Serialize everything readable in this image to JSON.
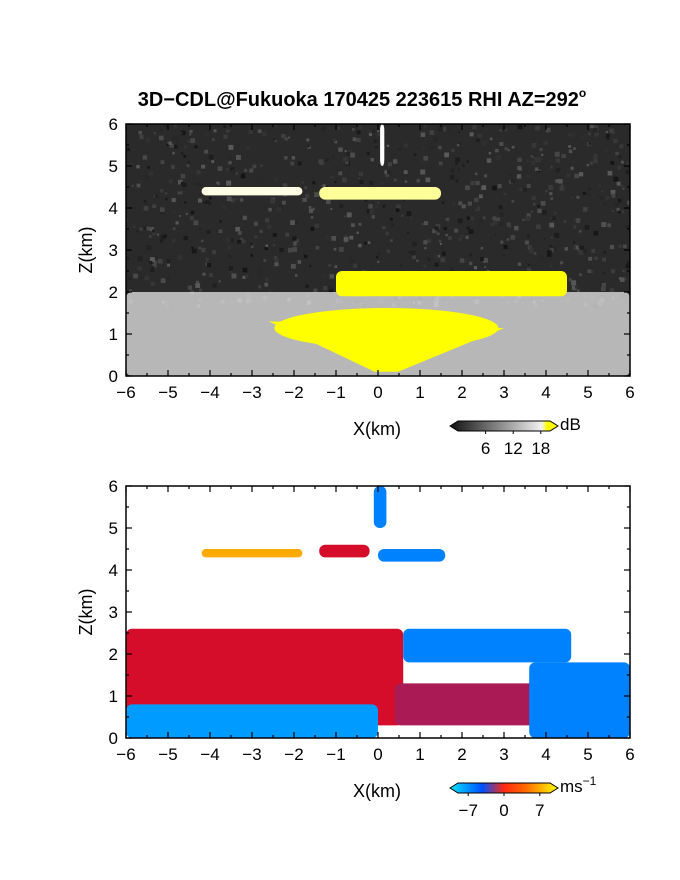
{
  "figure": {
    "title": "3D−CDL@Fukuoka 170425 223615 RHI AZ=292",
    "title_sup": "o"
  },
  "chart_data": [
    {
      "type": "heatmap",
      "panel": "top",
      "field": "SNR",
      "xlabel": "X(km)",
      "ylabel": "Z(km)",
      "xlim": [
        -6,
        6
      ],
      "ylim": [
        0,
        6
      ],
      "xticks": [
        -6,
        -5,
        -4,
        -3,
        -2,
        -1,
        0,
        1,
        2,
        3,
        4,
        5,
        6
      ],
      "yticks": [
        0,
        1,
        2,
        3,
        4,
        5,
        6
      ],
      "xtick_labels": [
        "−6",
        "−5",
        "−4",
        "−3",
        "−2",
        "−1",
        "0",
        "1",
        "2",
        "3",
        "4",
        "5",
        "6"
      ],
      "ytick_labels": [
        "0",
        "1",
        "2",
        "3",
        "4",
        "5",
        "6"
      ],
      "colormap": "grayscale-to-yellow",
      "colorbar": {
        "unit": "dB",
        "range": [
          0,
          20
        ],
        "tick_values": [
          6,
          12,
          18
        ],
        "tick_labels": [
          "6",
          "12",
          "18"
        ],
        "colors": [
          "#101010",
          "#ffffff",
          "#ffff00"
        ]
      },
      "regions": [
        {
          "desc": "upper cloud layer left",
          "x": [
            -4.2,
            -1.8
          ],
          "z": [
            4.3,
            4.5
          ],
          "value_db": 11
        },
        {
          "desc": "upper cloud layer right",
          "x": [
            -1.4,
            1.5
          ],
          "z": [
            4.2,
            4.5
          ],
          "value_db": 14
        },
        {
          "desc": "vertical streak",
          "x": [
            0.05,
            0.15
          ],
          "z": [
            5.0,
            6.0
          ],
          "value_db": 10
        },
        {
          "desc": "saturated band 2 km",
          "x": [
            -1.0,
            4.5
          ],
          "z": [
            1.9,
            2.5
          ],
          "value_db": 20
        },
        {
          "desc": "saturated near-surface cone",
          "x": [
            -2.6,
            3.0
          ],
          "z": [
            0.1,
            1.7
          ],
          "value_db": 20
        },
        {
          "desc": "boundary layer gray",
          "x": [
            -6.0,
            6.0
          ],
          "z": [
            0.0,
            2.0
          ],
          "value_db": 9
        }
      ]
    },
    {
      "type": "heatmap",
      "panel": "bottom",
      "field": "Doppler velocity",
      "xlabel": "X(km)",
      "ylabel": "Z(km)",
      "xlim": [
        -6,
        6
      ],
      "ylim": [
        0,
        6
      ],
      "xticks": [
        -6,
        -5,
        -4,
        -3,
        -2,
        -1,
        0,
        1,
        2,
        3,
        4,
        5,
        6
      ],
      "yticks": [
        0,
        1,
        2,
        3,
        4,
        5,
        6
      ],
      "xtick_labels": [
        "−6",
        "−5",
        "−4",
        "−3",
        "−2",
        "−1",
        "0",
        "1",
        "2",
        "3",
        "4",
        "5",
        "6"
      ],
      "ytick_labels": [
        "0",
        "1",
        "2",
        "3",
        "4",
        "5",
        "6"
      ],
      "colormap": "cyan-blue-red-yellow",
      "colorbar": {
        "unit": "ms",
        "unit_sup": "−1",
        "range": [
          -9,
          9
        ],
        "tick_values": [
          -7,
          0,
          7
        ],
        "tick_labels": [
          "−7",
          "0",
          "7"
        ],
        "colors": [
          "#00e5ff",
          "#0050ff",
          "#ff0000",
          "#ffff00"
        ]
      },
      "regions": [
        {
          "desc": "upper layer left",
          "x": [
            -4.2,
            -1.8
          ],
          "z": [
            4.3,
            4.5
          ],
          "velocity_ms": 7
        },
        {
          "desc": "upper layer middle",
          "x": [
            -1.4,
            -0.2
          ],
          "z": [
            4.3,
            4.6
          ],
          "velocity_ms": 2
        },
        {
          "desc": "upper layer right",
          "x": [
            0.0,
            1.6
          ],
          "z": [
            4.2,
            4.5
          ],
          "velocity_ms": -5
        },
        {
          "desc": "vertical streak",
          "x": [
            -0.1,
            0.2
          ],
          "z": [
            5.0,
            6.0
          ],
          "velocity_ms": -5
        },
        {
          "desc": "left boundary layer",
          "x": [
            -6.0,
            0.6
          ],
          "z": [
            0.3,
            2.6
          ],
          "velocity_ms": 2
        },
        {
          "desc": "right upper band",
          "x": [
            0.6,
            4.6
          ],
          "z": [
            1.8,
            2.6
          ],
          "velocity_ms": -5
        },
        {
          "desc": "right lower layer",
          "x": [
            0.4,
            4.0
          ],
          "z": [
            0.3,
            1.3
          ],
          "velocity_ms": 1
        },
        {
          "desc": "near-surface inflow",
          "x": [
            -6.0,
            0.0
          ],
          "z": [
            0.0,
            0.8
          ],
          "velocity_ms": -6
        },
        {
          "desc": "far right low layer",
          "x": [
            3.6,
            6.0
          ],
          "z": [
            0.0,
            1.8
          ],
          "velocity_ms": -5
        }
      ]
    }
  ]
}
